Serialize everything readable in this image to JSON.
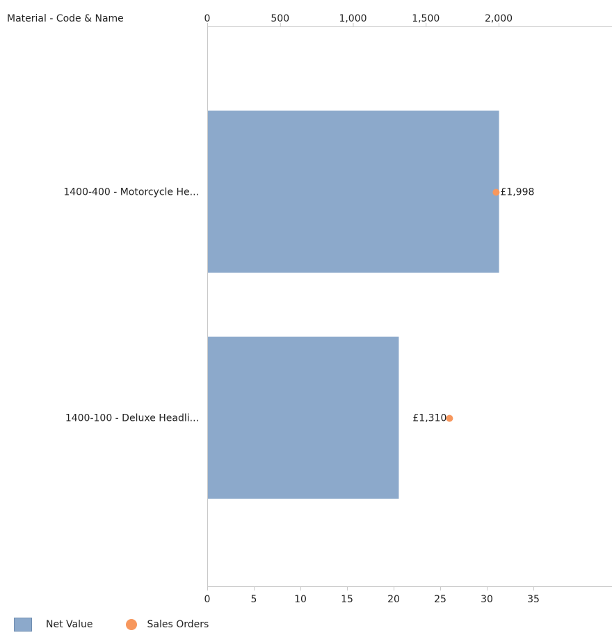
{
  "chart_data": {
    "type": "bar",
    "orientation": "horizontal",
    "category_axis_title": "Material - Code & Name",
    "categories": [
      "1400-400 - Motorcycle He...",
      "1400-100 - Deluxe Headli..."
    ],
    "series": [
      {
        "name": "Net Value",
        "kind": "bar",
        "axis": "top",
        "values": [
          1998,
          1310
        ],
        "labels": [
          "£1,998",
          "£1,310"
        ],
        "color": "#8ca9cb"
      },
      {
        "name": "Sales Orders",
        "kind": "point",
        "axis": "bottom",
        "values": [
          31,
          26
        ],
        "color": "#f7975d"
      }
    ],
    "top_axis": {
      "ticks": [
        0,
        500,
        1000,
        1500,
        2000
      ],
      "tick_labels": [
        "0",
        "500",
        "1,000",
        "1,500",
        "2,000"
      ],
      "range": [
        0,
        2800
      ]
    },
    "bottom_axis": {
      "ticks": [
        0,
        5,
        10,
        15,
        20,
        25,
        30,
        35
      ],
      "tick_labels": [
        "0",
        "5",
        "10",
        "15",
        "20",
        "25",
        "30",
        "35"
      ],
      "range": [
        0,
        43
      ]
    },
    "grid": false,
    "legend_position": "bottom-left"
  }
}
